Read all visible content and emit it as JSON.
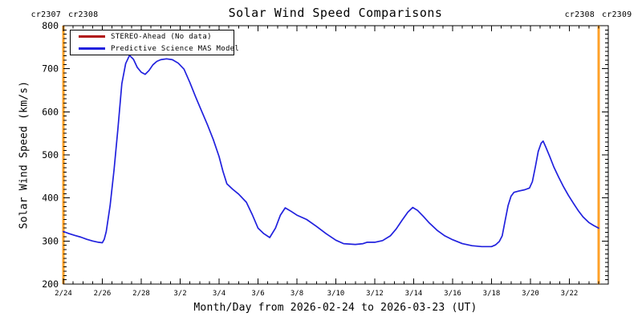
{
  "header": {
    "title": "Solar Wind Speed Comparisons",
    "cr_left_1": "cr2307",
    "cr_left_2": "cr2308",
    "cr_right_1": "cr2308",
    "cr_right_2": "cr2309"
  },
  "chart_data": {
    "type": "line",
    "title": "Solar Wind Speed Comparisons",
    "xlabel": "Month/Day from 2026-02-24 to 2026-03-23 (UT)",
    "ylabel": "Solar Wind Speed (km/s)",
    "x_start_date": "2026-02-24",
    "x_end_date": "2026-03-23",
    "xlim_days": [
      0,
      28
    ],
    "ylim": [
      200,
      800
    ],
    "y_ticks": [
      200,
      300,
      400,
      500,
      600,
      700,
      800
    ],
    "y_minor_step": 10,
    "x_major_step_days": 2,
    "x_minor_step_days": 0.5,
    "x_tick_labels": [
      "2/24",
      "2/26",
      "2/28",
      "3/2",
      "3/4",
      "3/6",
      "3/8",
      "3/10",
      "3/12",
      "3/14",
      "3/16",
      "3/18",
      "3/20",
      "3/22"
    ],
    "grid": false,
    "legend_position": "top-left-inside",
    "colors": {
      "stereo": "#B01010",
      "mas": "#2121DE",
      "carrington": "#FFA128",
      "axis": "#000000"
    },
    "carrington_boundaries": [
      {
        "day": 0,
        "left_label": "cr2307",
        "right_label": "cr2308"
      },
      {
        "day": 27.5,
        "left_label": "cr2308",
        "right_label": "cr2309"
      }
    ],
    "series": [
      {
        "name": "STEREO-Ahead (No data)",
        "color_key": "stereo",
        "points_day_kms": []
      },
      {
        "name": "Predictive Science MAS Model",
        "color_key": "mas",
        "points_day_kms": [
          [
            0,
            322
          ],
          [
            0.3,
            317
          ],
          [
            0.6,
            313
          ],
          [
            0.9,
            309
          ],
          [
            1.2,
            304
          ],
          [
            1.5,
            300
          ],
          [
            1.8,
            297
          ],
          [
            2.0,
            296
          ],
          [
            2.1,
            304
          ],
          [
            2.2,
            322
          ],
          [
            2.4,
            382
          ],
          [
            2.6,
            465
          ],
          [
            2.8,
            560
          ],
          [
            3.0,
            665
          ],
          [
            3.2,
            712
          ],
          [
            3.4,
            731
          ],
          [
            3.6,
            722
          ],
          [
            3.8,
            703
          ],
          [
            4.0,
            692
          ],
          [
            4.2,
            687
          ],
          [
            4.4,
            696
          ],
          [
            4.6,
            709
          ],
          [
            4.8,
            717
          ],
          [
            5.0,
            721
          ],
          [
            5.3,
            723
          ],
          [
            5.6,
            721
          ],
          [
            5.9,
            713
          ],
          [
            6.2,
            699
          ],
          [
            6.5,
            668
          ],
          [
            6.8,
            634
          ],
          [
            7.1,
            602
          ],
          [
            7.4,
            570
          ],
          [
            7.7,
            536
          ],
          [
            8.0,
            496
          ],
          [
            8.2,
            462
          ],
          [
            8.4,
            433
          ],
          [
            8.7,
            420
          ],
          [
            9.0,
            409
          ],
          [
            9.4,
            390
          ],
          [
            9.7,
            362
          ],
          [
            10.0,
            330
          ],
          [
            10.3,
            317
          ],
          [
            10.6,
            308
          ],
          [
            10.9,
            330
          ],
          [
            11.15,
            360
          ],
          [
            11.4,
            377
          ],
          [
            11.7,
            369
          ],
          [
            12.0,
            360
          ],
          [
            12.5,
            350
          ],
          [
            13.0,
            334
          ],
          [
            13.5,
            317
          ],
          [
            14.0,
            302
          ],
          [
            14.4,
            294
          ],
          [
            15.0,
            292
          ],
          [
            15.4,
            294
          ],
          [
            15.6,
            297
          ],
          [
            16.0,
            297
          ],
          [
            16.4,
            301
          ],
          [
            16.8,
            312
          ],
          [
            17.1,
            328
          ],
          [
            17.4,
            348
          ],
          [
            17.7,
            367
          ],
          [
            17.95,
            378
          ],
          [
            18.2,
            371
          ],
          [
            18.5,
            357
          ],
          [
            18.8,
            342
          ],
          [
            19.2,
            325
          ],
          [
            19.6,
            312
          ],
          [
            20.0,
            303
          ],
          [
            20.5,
            294
          ],
          [
            21.0,
            289
          ],
          [
            21.5,
            287
          ],
          [
            22.0,
            287
          ],
          [
            22.2,
            291
          ],
          [
            22.4,
            299
          ],
          [
            22.55,
            312
          ],
          [
            22.7,
            348
          ],
          [
            22.85,
            382
          ],
          [
            23.0,
            404
          ],
          [
            23.15,
            413
          ],
          [
            23.4,
            416
          ],
          [
            23.7,
            419
          ],
          [
            23.95,
            423
          ],
          [
            24.1,
            438
          ],
          [
            24.25,
            472
          ],
          [
            24.4,
            508
          ],
          [
            24.55,
            527
          ],
          [
            24.65,
            532
          ],
          [
            24.8,
            517
          ],
          [
            25.0,
            495
          ],
          [
            25.2,
            472
          ],
          [
            25.45,
            448
          ],
          [
            25.7,
            426
          ],
          [
            25.95,
            406
          ],
          [
            26.2,
            388
          ],
          [
            26.45,
            371
          ],
          [
            26.7,
            356
          ],
          [
            27.0,
            343
          ],
          [
            27.25,
            336
          ],
          [
            27.5,
            330
          ]
        ]
      }
    ]
  }
}
